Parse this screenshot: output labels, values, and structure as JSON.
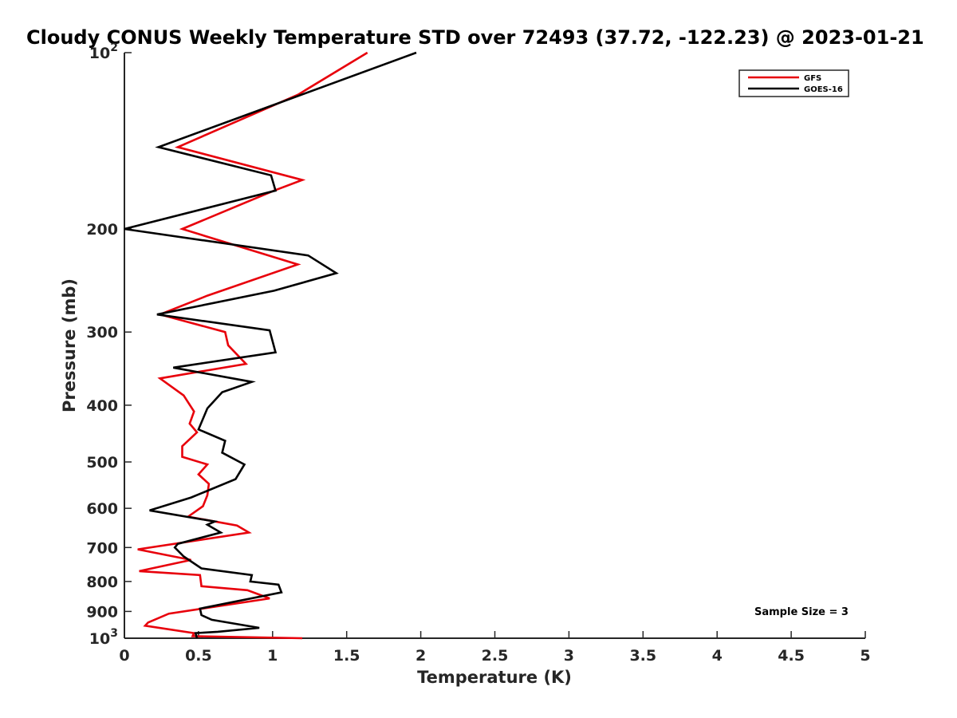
{
  "chart_data": {
    "type": "line",
    "title": "Cloudy CONUS Weekly Temperature STD over 72493 (37.72, -122.23) @ 2023-01-21",
    "xlabel": "Temperature (K)",
    "ylabel": "Pressure (mb)",
    "xlim": [
      0,
      5
    ],
    "ylim": [
      100,
      1000
    ],
    "yscale": "log",
    "y_reversed": true,
    "grid": false,
    "legend_position": "top-right",
    "xticks": [
      0,
      0.5,
      1,
      1.5,
      2,
      2.5,
      3,
      3.5,
      4,
      4.5,
      5
    ],
    "xtick_labels": [
      "0",
      "0.5",
      "1",
      "1.5",
      "2",
      "2.5",
      "3",
      "3.5",
      "4",
      "4.5",
      "5"
    ],
    "yticks": [
      {
        "value": 100,
        "base": "10",
        "exp": "2"
      },
      {
        "value": 200,
        "label": "200"
      },
      {
        "value": 300,
        "label": "300"
      },
      {
        "value": 400,
        "label": "400"
      },
      {
        "value": 500,
        "label": "500"
      },
      {
        "value": 600,
        "label": "600"
      },
      {
        "value": 700,
        "label": "700"
      },
      {
        "value": 800,
        "label": "800"
      },
      {
        "value": 900,
        "label": "900"
      },
      {
        "value": 1000,
        "base": "10",
        "exp": "3"
      }
    ],
    "series": [
      {
        "name": "GFS",
        "color": "#e8000b",
        "points": [
          [
            1.64,
            100
          ],
          [
            1.17,
            118
          ],
          [
            0.36,
            145
          ],
          [
            1.2,
            165
          ],
          [
            1.01,
            172
          ],
          [
            0.39,
            200
          ],
          [
            0.87,
            218
          ],
          [
            1.17,
            230
          ],
          [
            0.56,
            260
          ],
          [
            0.24,
            280
          ],
          [
            0.68,
            300
          ],
          [
            0.7,
            316
          ],
          [
            0.82,
            340
          ],
          [
            0.24,
            360
          ],
          [
            0.4,
            385
          ],
          [
            0.47,
            410
          ],
          [
            0.44,
            430
          ],
          [
            0.49,
            445
          ],
          [
            0.39,
            470
          ],
          [
            0.39,
            490
          ],
          [
            0.56,
            505
          ],
          [
            0.5,
            525
          ],
          [
            0.57,
            545
          ],
          [
            0.56,
            570
          ],
          [
            0.53,
            595
          ],
          [
            0.43,
            620
          ],
          [
            0.76,
            642
          ],
          [
            0.84,
            660
          ],
          [
            0.09,
            705
          ],
          [
            0.45,
            735
          ],
          [
            0.1,
            768
          ],
          [
            0.51,
            780
          ],
          [
            0.52,
            815
          ],
          [
            0.83,
            828
          ],
          [
            0.98,
            855
          ],
          [
            0.3,
            908
          ],
          [
            0.16,
            940
          ],
          [
            0.14,
            952
          ],
          [
            0.47,
            980
          ],
          [
            0.46,
            992
          ],
          [
            1.2,
            1000
          ]
        ]
      },
      {
        "name": "GOES-16",
        "color": "#000000",
        "points": [
          [
            1.97,
            100
          ],
          [
            1.0,
            123
          ],
          [
            0.23,
            145
          ],
          [
            0.99,
            162
          ],
          [
            1.02,
            172
          ],
          [
            0.0,
            200
          ],
          [
            1.24,
            222
          ],
          [
            1.43,
            238
          ],
          [
            1.01,
            255
          ],
          [
            0.22,
            280
          ],
          [
            0.98,
            298
          ],
          [
            1.02,
            325
          ],
          [
            0.33,
            345
          ],
          [
            0.86,
            365
          ],
          [
            0.66,
            380
          ],
          [
            0.56,
            405
          ],
          [
            0.5,
            440
          ],
          [
            0.68,
            460
          ],
          [
            0.66,
            482
          ],
          [
            0.81,
            505
          ],
          [
            0.75,
            535
          ],
          [
            0.45,
            575
          ],
          [
            0.17,
            605
          ],
          [
            0.61,
            632
          ],
          [
            0.56,
            640
          ],
          [
            0.65,
            660
          ],
          [
            0.36,
            690
          ],
          [
            0.34,
            700
          ],
          [
            0.4,
            725
          ],
          [
            0.52,
            760
          ],
          [
            0.86,
            780
          ],
          [
            0.85,
            800
          ],
          [
            1.04,
            810
          ],
          [
            1.06,
            835
          ],
          [
            0.51,
            890
          ],
          [
            0.52,
            913
          ],
          [
            0.59,
            930
          ],
          [
            0.91,
            960
          ],
          [
            0.63,
            975
          ],
          [
            0.48,
            980
          ],
          [
            0.49,
            1000
          ]
        ]
      }
    ],
    "annotation": "Sample Size = 3"
  }
}
